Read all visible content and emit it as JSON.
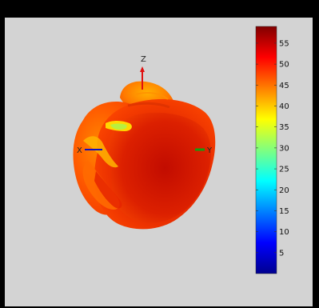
{
  "chart_data": {
    "type": "heatmap",
    "title": "",
    "axes": {
      "x_label": "X",
      "y_label": "Y",
      "z_label": "Z"
    },
    "colorbar": {
      "min": 0,
      "max": 59,
      "ticks": [
        5,
        10,
        15,
        20,
        25,
        30,
        35,
        40,
        45,
        50,
        55
      ],
      "colormap": "jet"
    },
    "grid": false
  },
  "colors": {
    "figure_background": "#000000",
    "axes_background": "#d3d3d3",
    "x_axis": "#1010c0",
    "y_axis": "#10a010",
    "z_axis": "#e01010"
  }
}
